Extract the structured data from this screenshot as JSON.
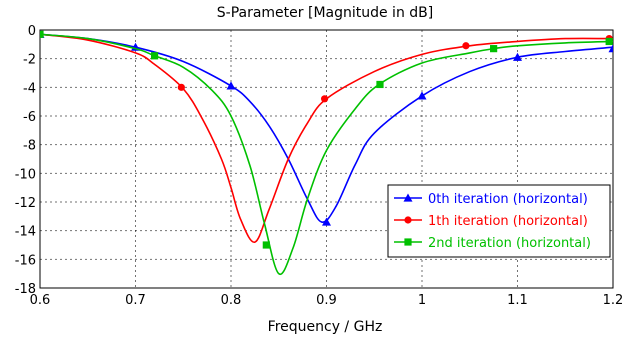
{
  "chart_data": {
    "type": "line",
    "title": "S-Parameter [Magnitude in dB]",
    "xlabel": "Frequency / GHz",
    "ylabel": "",
    "xlim": [
      0.6,
      1.2
    ],
    "ylim": [
      -18,
      0
    ],
    "x_ticks": [
      "0.6",
      "0.7",
      "0.8",
      "0.9",
      "1",
      "1.1",
      "1.2"
    ],
    "y_ticks": [
      "0",
      "-2",
      "-4",
      "-6",
      "-8",
      "-10",
      "-12",
      "-14",
      "-16",
      "-18"
    ],
    "grid": true,
    "legend_position": "bottom-right",
    "series": [
      {
        "name": "0th iteration (horizontal)",
        "color": "#0000ff",
        "marker": "triangle",
        "x": [
          0.6,
          0.65,
          0.7,
          0.75,
          0.8,
          0.82,
          0.84,
          0.86,
          0.88,
          0.895,
          0.91,
          0.93,
          0.95,
          1.0,
          1.05,
          1.1,
          1.15,
          1.2
        ],
        "y": [
          -0.3,
          -0.6,
          -1.2,
          -2.2,
          -3.9,
          -5.0,
          -6.7,
          -9.0,
          -11.8,
          -13.4,
          -12.3,
          -9.4,
          -7.2,
          -4.6,
          -2.9,
          -1.9,
          -1.5,
          -1.2
        ],
        "markers_x": [
          0.6,
          0.7,
          0.8,
          0.9,
          1.0,
          1.1,
          1.2
        ],
        "markers_y": [
          -0.3,
          -1.2,
          -3.9,
          -13.4,
          -4.6,
          -1.9,
          -1.3
        ]
      },
      {
        "name": "1th iteration (horizontal)",
        "color": "#ff0000",
        "marker": "circle",
        "x": [
          0.6,
          0.65,
          0.7,
          0.72,
          0.75,
          0.77,
          0.79,
          0.8,
          0.81,
          0.825,
          0.84,
          0.86,
          0.88,
          0.9,
          0.95,
          1.0,
          1.05,
          1.1,
          1.15,
          1.2
        ],
        "y": [
          -0.3,
          -0.7,
          -1.6,
          -2.4,
          -4.1,
          -6.2,
          -9.0,
          -11.0,
          -13.2,
          -14.8,
          -12.5,
          -9.0,
          -6.5,
          -4.8,
          -2.9,
          -1.7,
          -1.1,
          -0.8,
          -0.6,
          -0.6
        ],
        "markers_x": [
          0.6,
          0.748,
          0.898,
          1.046,
          1.196
        ],
        "markers_y": [
          -0.3,
          -4.0,
          -4.8,
          -1.1,
          -0.6
        ]
      },
      {
        "name": "2nd iteration (horizontal)",
        "color": "#00c000",
        "marker": "square",
        "x": [
          0.6,
          0.65,
          0.7,
          0.72,
          0.75,
          0.78,
          0.8,
          0.82,
          0.835,
          0.85,
          0.865,
          0.88,
          0.9,
          0.93,
          0.955,
          1.0,
          1.05,
          1.075,
          1.1,
          1.15,
          1.2
        ],
        "y": [
          -0.3,
          -0.6,
          -1.3,
          -1.8,
          -2.6,
          -4.2,
          -6.0,
          -9.5,
          -13.5,
          -17.0,
          -15.2,
          -11.8,
          -8.4,
          -5.5,
          -3.8,
          -2.3,
          -1.6,
          -1.3,
          -1.1,
          -0.9,
          -0.8
        ],
        "markers_x": [
          0.6,
          0.72,
          0.837,
          0.956,
          1.075,
          1.196
        ],
        "markers_y": [
          -0.3,
          -1.8,
          -15.0,
          -3.8,
          -1.3,
          -0.8
        ]
      }
    ]
  }
}
